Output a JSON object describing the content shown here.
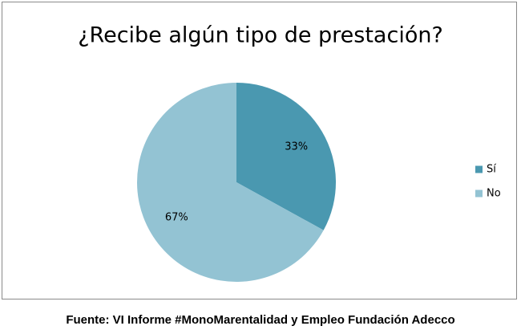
{
  "chart_data": {
    "type": "pie",
    "title": "¿Recibe algún tipo de prestación?",
    "categories": [
      "Sí",
      "No"
    ],
    "values": [
      33,
      67
    ],
    "value_labels": [
      "33%",
      "67%"
    ],
    "colors": [
      "#4a98b0",
      "#93c3d3"
    ],
    "legend": "right",
    "source": "Fuente: VI Informe #MonoMarentalidad y Empleo Fundación Adecco"
  }
}
